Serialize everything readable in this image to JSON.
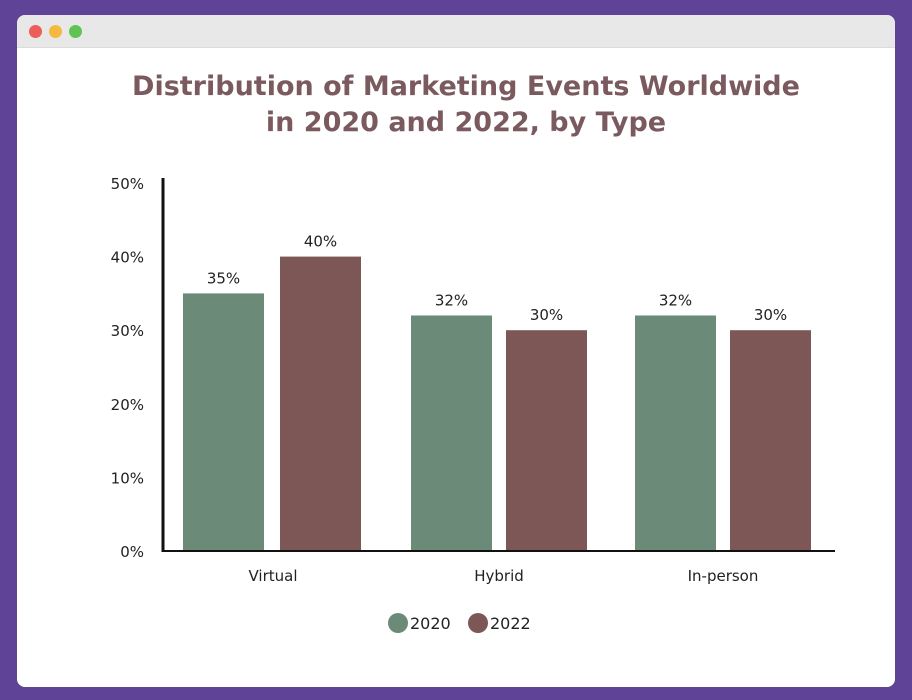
{
  "window": {
    "controls": [
      "close",
      "minimize",
      "maximize"
    ],
    "control_colors": [
      "#ee5d57",
      "#f5b841",
      "#5fc454"
    ]
  },
  "chart_data": {
    "type": "bar",
    "title": [
      "Distribution of Marketing Events Worldwide",
      "in 2020 and 2022, by Type"
    ],
    "categories": [
      "Virtual",
      "Hybrid",
      "In-person"
    ],
    "series": [
      {
        "name": "2020",
        "values": [
          35,
          32,
          32
        ],
        "labels": [
          "35%",
          "32%",
          "32%"
        ],
        "color": "#6b8b78"
      },
      {
        "name": "2022",
        "values": [
          40,
          30,
          30
        ],
        "labels": [
          "40%",
          "30%",
          "30%"
        ],
        "color": "#7d5656"
      }
    ],
    "ylim": [
      0,
      50
    ],
    "yticks": [
      "0%",
      "10%",
      "20%",
      "30%",
      "40%",
      "50%"
    ],
    "xlabel": "",
    "ylabel": "",
    "grid": false,
    "legend": "bottom",
    "title_color": "#7a5a5e"
  }
}
